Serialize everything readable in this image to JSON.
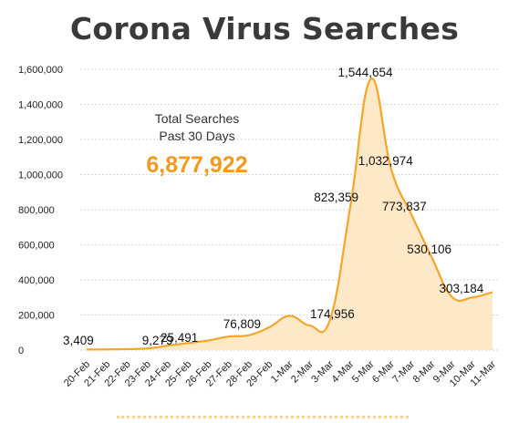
{
  "title": "Corona Virus Searches",
  "total": {
    "label_line1": "Total Searches",
    "label_line2": "Past 30 Days",
    "value": "6,877,922"
  },
  "colors": {
    "line": "#f4a52a",
    "fill": "#fde9c7",
    "total_value": "#f29a1e",
    "title": "#3a3a3a"
  },
  "chart_data": {
    "type": "area",
    "title": "Corona Virus Searches",
    "xlabel": "",
    "ylabel": "",
    "ylim": [
      0,
      1600000
    ],
    "grid": true,
    "yticks": [
      {
        "value": 0,
        "label": "0"
      },
      {
        "value": 200000,
        "label": "200,000"
      },
      {
        "value": 400000,
        "label": "400,000"
      },
      {
        "value": 600000,
        "label": "600,000"
      },
      {
        "value": 800000,
        "label": "800,000"
      },
      {
        "value": 1000000,
        "label": "1,000,000"
      },
      {
        "value": 1200000,
        "label": "1,200,000"
      },
      {
        "value": 1400000,
        "label": "1,400,000"
      },
      {
        "value": 1600000,
        "label": "1,600,000"
      }
    ],
    "categories": [
      "20-Feb",
      "21-Feb",
      "22-Feb",
      "23-Feb",
      "24-Feb",
      "25-Feb",
      "26-Feb",
      "27-Feb",
      "28-Feb",
      "29-Feb",
      "1-Mar",
      "2-Mar",
      "3-Mar",
      "4-Mar",
      "5-Mar",
      "6-Mar",
      "7-Mar",
      "8-Mar",
      "9-Mar",
      "10-Mar",
      "11-Mar"
    ],
    "values": [
      3409,
      4000,
      5500,
      9279,
      25491,
      40000,
      55000,
      76809,
      85000,
      130000,
      195000,
      140000,
      174956,
      823359,
      1544654,
      1032974,
      773837,
      530106,
      303184,
      300000,
      330000
    ],
    "data_labels": [
      {
        "index": 0,
        "text": "3,409"
      },
      {
        "index": 3,
        "text": "9,279"
      },
      {
        "index": 4,
        "text": "25,491"
      },
      {
        "index": 7,
        "text": "76,809"
      },
      {
        "index": 12,
        "text": "174,956"
      },
      {
        "index": 13,
        "text": "823,359"
      },
      {
        "index": 14,
        "text": "1,544,654"
      },
      {
        "index": 15,
        "text": "1,032,974"
      },
      {
        "index": 16,
        "text": "773,837"
      },
      {
        "index": 17,
        "text": "530,106"
      },
      {
        "index": 18,
        "text": "303,184"
      }
    ]
  }
}
